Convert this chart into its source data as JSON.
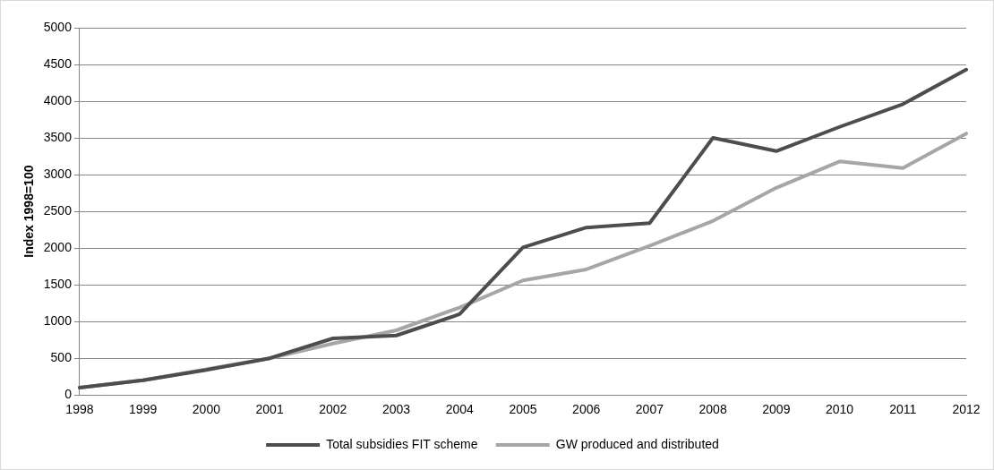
{
  "chart_data": {
    "type": "line",
    "ylabel": "Index 1998=100",
    "categories": [
      "1998",
      "1999",
      "2000",
      "2001",
      "2002",
      "2003",
      "2004",
      "2005",
      "2006",
      "2007",
      "2008",
      "2009",
      "2010",
      "2011",
      "2012"
    ],
    "series": [
      {
        "name": "Total subsidies FIT scheme",
        "color": "#4d4d4d",
        "values": [
          100,
          200,
          340,
          500,
          770,
          810,
          1100,
          2010,
          2280,
          2340,
          3500,
          3320,
          3650,
          3960,
          4430
        ]
      },
      {
        "name": "GW produced and distributed",
        "color": "#a6a6a6",
        "values": [
          100,
          200,
          350,
          500,
          700,
          880,
          1190,
          1560,
          1710,
          2030,
          2370,
          2820,
          3180,
          3090,
          3560
        ]
      }
    ],
    "ylim": [
      0,
      5000
    ],
    "yticks": [
      0,
      500,
      1000,
      1500,
      2000,
      2500,
      3000,
      3500,
      4000,
      4500,
      5000
    ],
    "grid": "y",
    "legend": "bottom",
    "marker": "none",
    "line_style": "solid"
  }
}
